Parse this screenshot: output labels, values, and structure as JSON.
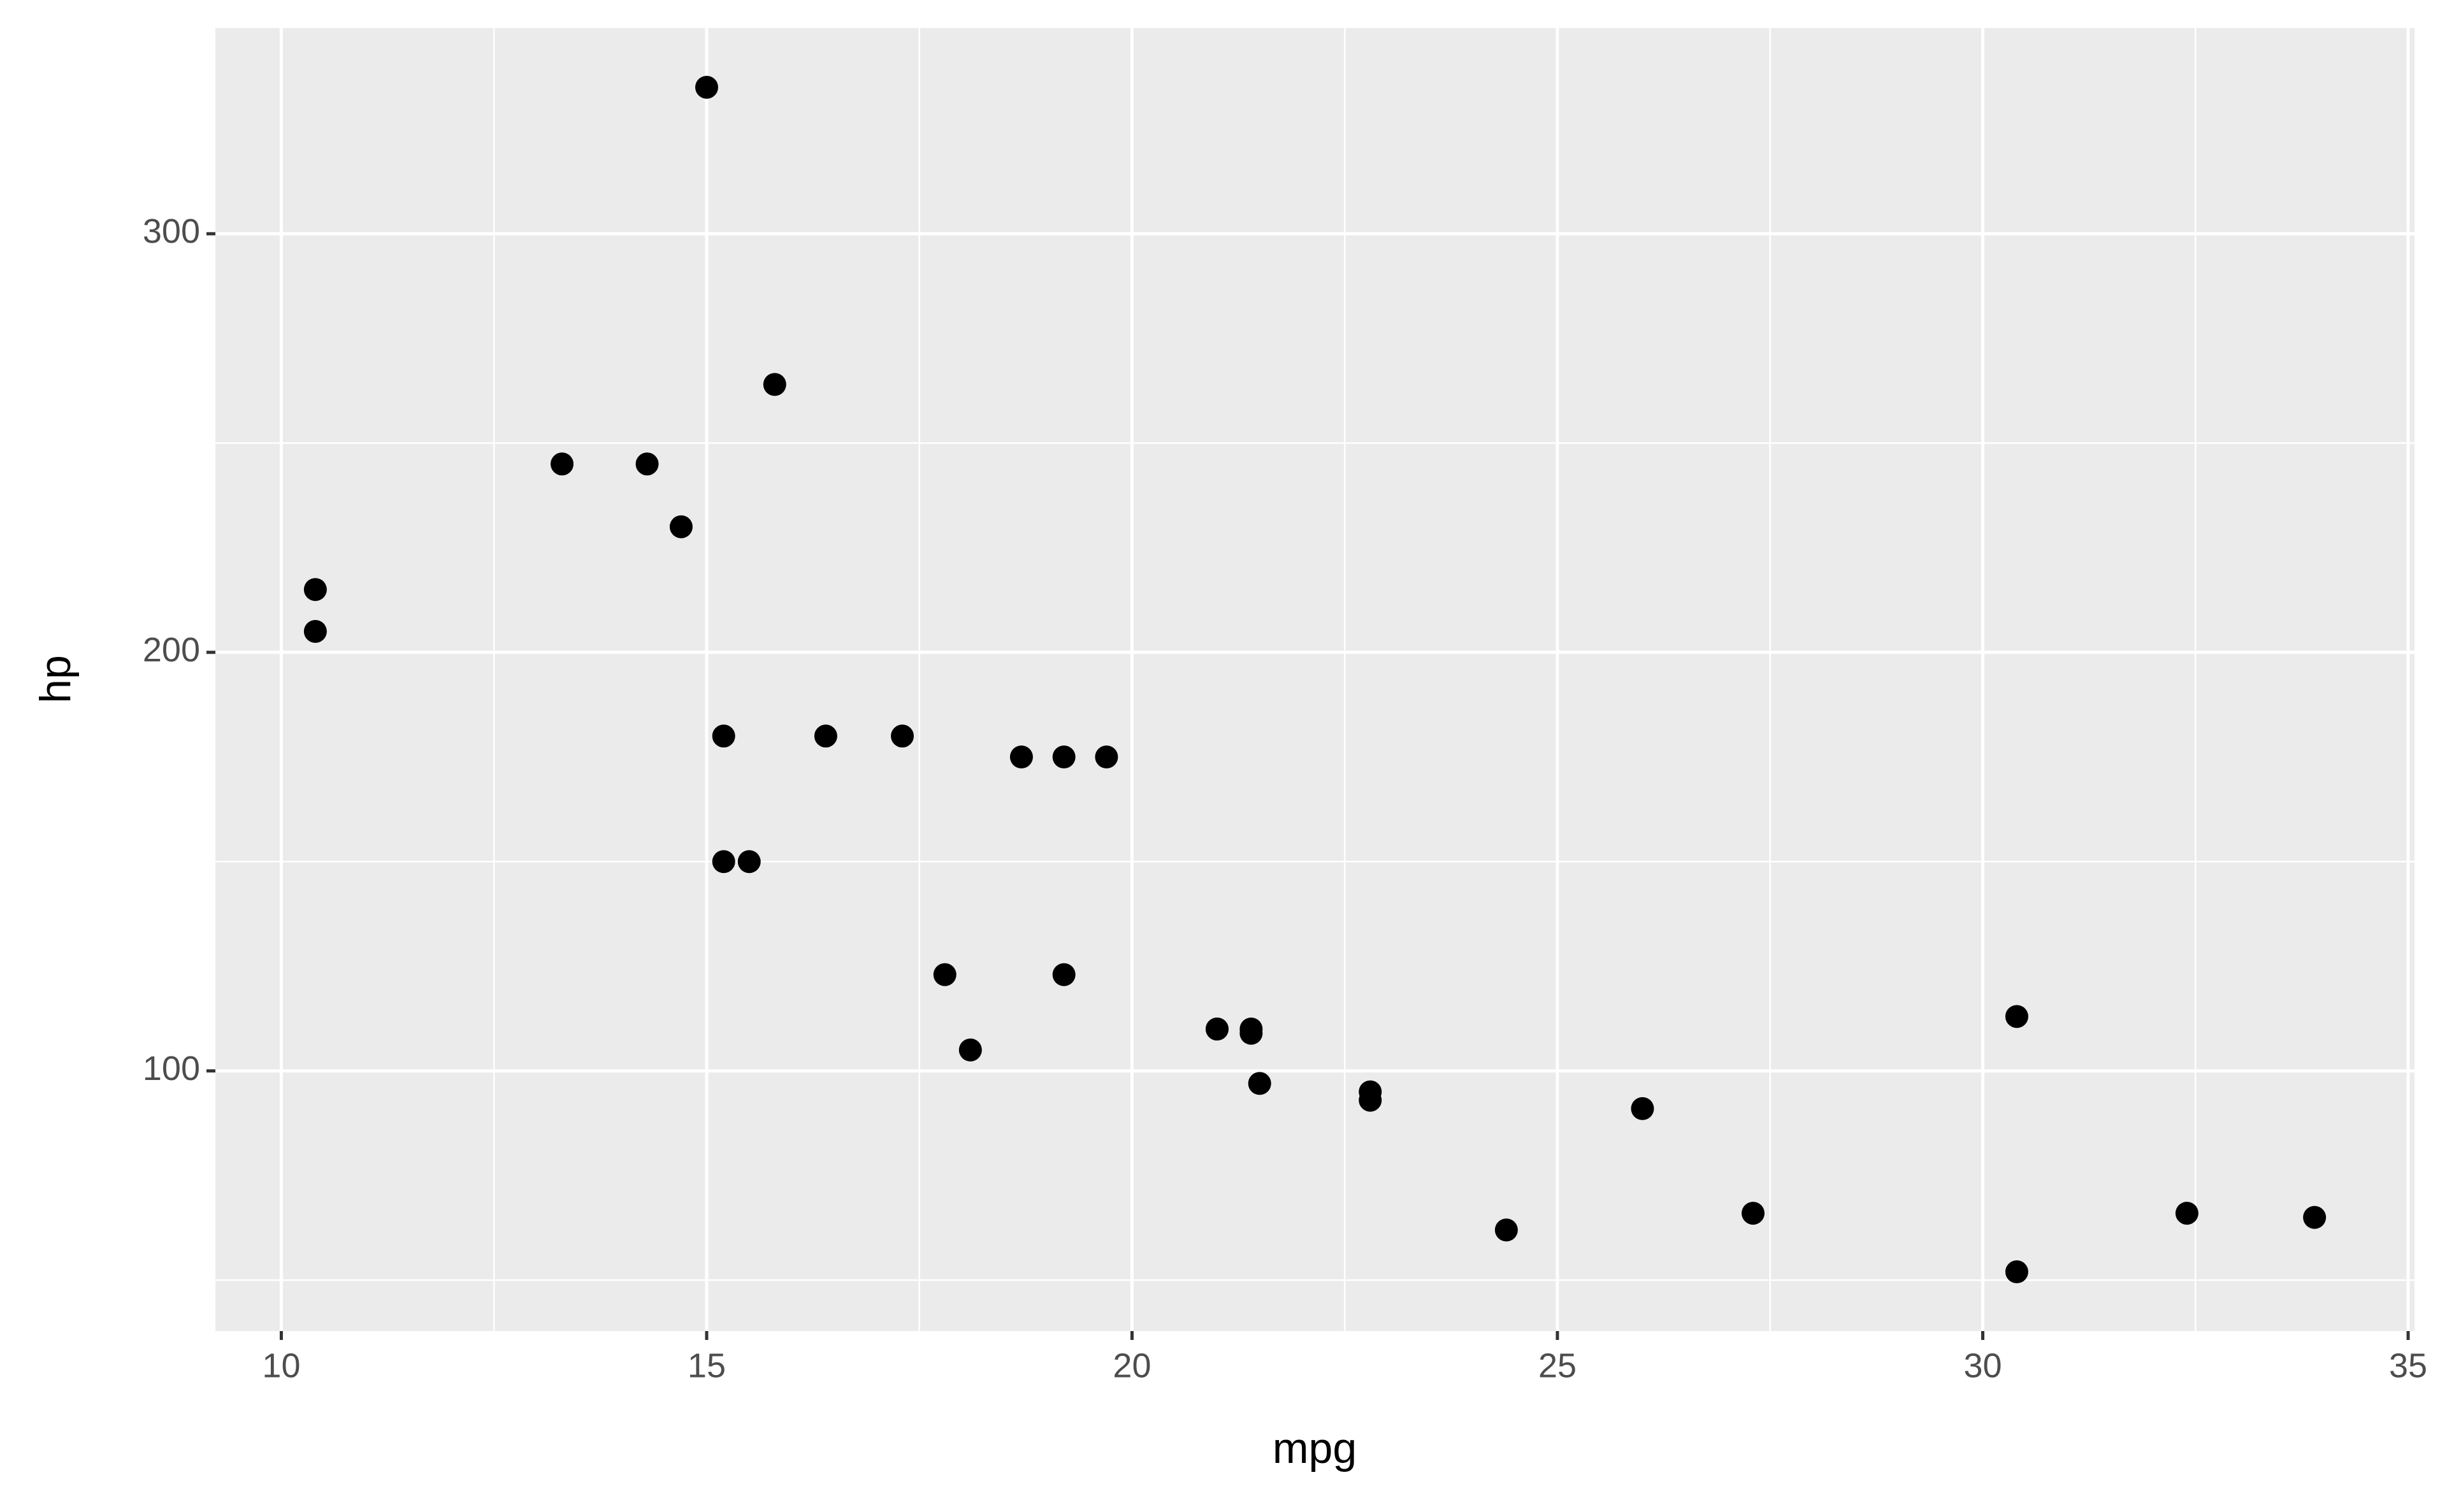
{
  "chart_data": {
    "type": "scatter",
    "x_label": "mpg",
    "y_label": "hp",
    "x": [
      21.0,
      21.0,
      22.8,
      21.4,
      18.7,
      18.1,
      14.3,
      24.4,
      22.8,
      19.2,
      17.8,
      16.4,
      17.3,
      15.2,
      10.4,
      10.4,
      14.7,
      32.4,
      30.4,
      33.9,
      21.5,
      15.5,
      15.2,
      13.3,
      19.2,
      27.3,
      26.0,
      30.4,
      15.8,
      19.7,
      15.0,
      21.4
    ],
    "values": [
      110,
      110,
      93,
      110,
      175,
      105,
      245,
      62,
      95,
      123,
      123,
      180,
      180,
      180,
      205,
      215,
      230,
      66,
      52,
      65,
      97,
      150,
      150,
      245,
      175,
      66,
      91,
      113,
      264,
      175,
      335,
      109
    ],
    "color": "#000000",
    "xlim": [
      9.225,
      35.075
    ],
    "xticks": [
      10,
      15,
      20,
      25,
      30,
      35
    ],
    "x_minor_ticks": [
      12.5,
      17.5,
      22.5,
      27.5,
      32.5
    ],
    "ylim": [
      37.85,
      349.15
    ],
    "yticks": [
      100,
      200,
      300
    ],
    "y_minor_ticks": [
      50,
      150,
      250
    ],
    "grid": true,
    "panel_color": "#ebebeb"
  }
}
